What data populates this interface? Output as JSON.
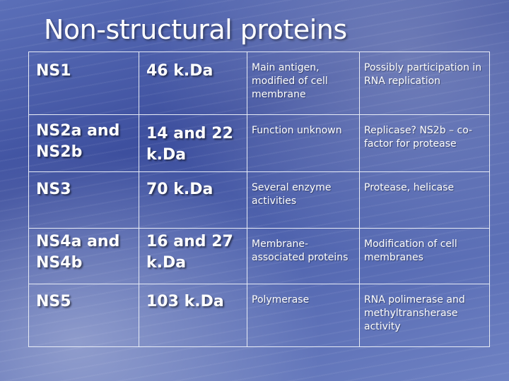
{
  "title": "Non-structural proteins",
  "rows": [
    {
      "protein": "NS1",
      "mass": "46 k.Da",
      "description": "Main antigen, modified of cell membrane",
      "function": "Possibly participation  in RNA replication"
    },
    {
      "protein": "NS2a  and NS2b",
      "mass": "14 and 22 k.Da",
      "description": "Function unknown",
      "function": "Replicase? NS2b – co-factor for protease"
    },
    {
      "protein": "NS3",
      "mass": "70 k.Da",
      "description": "Several enzyme activities",
      "function": "Protease, helicase"
    },
    {
      "protein": "NS4a and NS4b",
      "mass": "16 and 27 k.Da",
      "description": "Membrane-associated proteins",
      "function": "Modification of cell membranes"
    },
    {
      "protein": "NS5",
      "mass": "103 k.Da",
      "description": "Polymerase",
      "function": "RNA polimerase and methyltransherase activity"
    }
  ]
}
